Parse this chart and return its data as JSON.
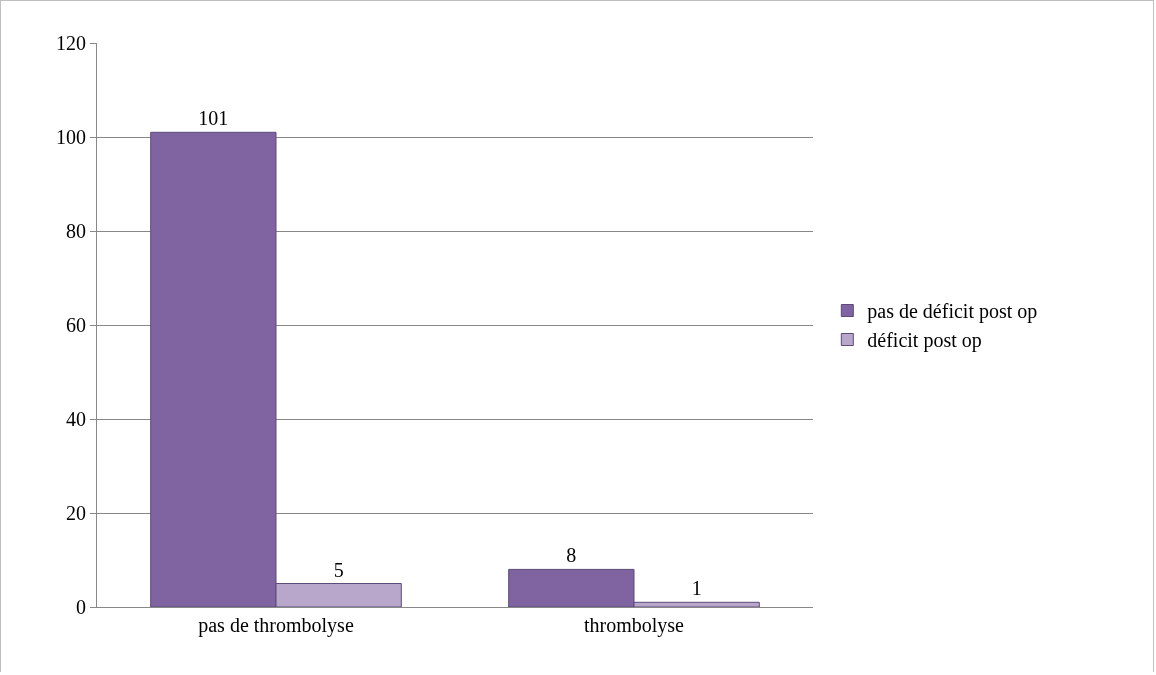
{
  "chart_data": {
    "type": "bar",
    "categories": [
      "pas de thrombolyse",
      "thrombolyse"
    ],
    "series": [
      {
        "name": "pas de déficit post op",
        "color": "#8064a2",
        "values": [
          101,
          8
        ]
      },
      {
        "name": "déficit post op",
        "color": "#b9a7cb",
        "values": [
          5,
          1
        ]
      }
    ],
    "ylim": [
      0,
      120
    ],
    "yticks": [
      0,
      20,
      40,
      60,
      80,
      100,
      120
    ],
    "grid": "y",
    "legend": "right",
    "data_labels": true
  }
}
